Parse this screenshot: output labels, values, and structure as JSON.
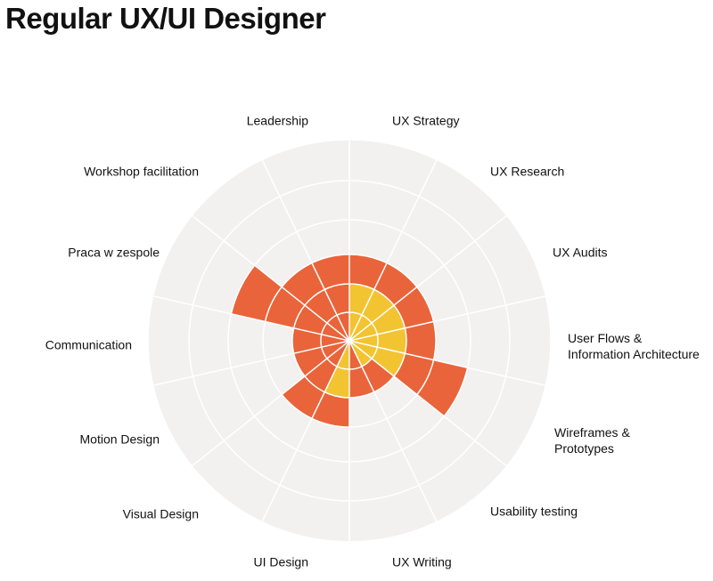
{
  "title": "Regular UX/UI Designer",
  "chart_data": {
    "type": "radial-bar",
    "title": "Regular UX/UI Designer",
    "levels": 5,
    "categories": [
      "UX Strategy",
      "UX Research",
      "UX Audits",
      "User Flows & Information Architecture",
      "Wireframes & Prototypes",
      "Usability testing",
      "UX Writing",
      "UI Design",
      "Visual Design",
      "Motion Design",
      "Communication",
      "Praca w zespole",
      "Workshop facilitation",
      "Leadership"
    ],
    "series": [
      {
        "values": [
          2,
          2,
          2,
          2,
          2,
          1,
          0,
          2,
          0,
          0,
          0,
          0,
          0,
          0
        ]
      },
      {
        "values": [
          3,
          3,
          3,
          3,
          4,
          2,
          2,
          3,
          3,
          2,
          2,
          4,
          3,
          3
        ]
      }
    ],
    "colors": {
      "background": "#f2f1f0",
      "grid": "#ffffff",
      "inner": "#f2c431",
      "outer": "#e9643a"
    }
  }
}
